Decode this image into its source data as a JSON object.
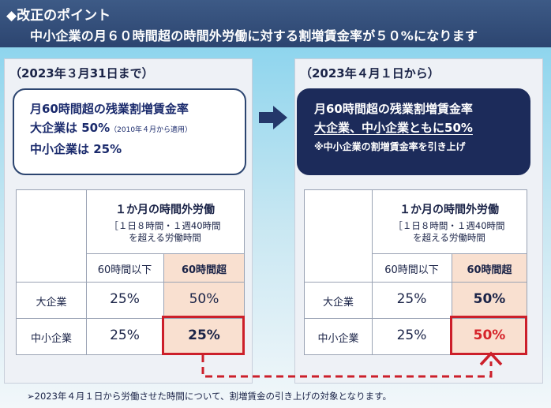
{
  "header": {
    "title": "◆改正のポイント",
    "subtitle": "中小企業の月６０時間超の時間外労働に対する割増賃金率が５０%になります"
  },
  "before": {
    "period": "（2023年３月31日まで）",
    "box": {
      "line1": "月60時間超の残業割増賃金率",
      "line2": "大企業は 50%",
      "line2_note": "（2010年４月から適用）",
      "line3": "中小企業は 25%"
    },
    "table": {
      "header_main": "１か月の時間外労働",
      "header_sub1": "［１日８時間・１週40時間",
      "header_sub2": "を超える労働時間",
      "col1": "60時間以下",
      "col2": "60時間超",
      "row1_label": "大企業",
      "row1_v1": "25%",
      "row1_v2": "50%",
      "row2_label": "中小企業",
      "row2_v1": "25%",
      "row2_v2": "25%"
    }
  },
  "after": {
    "period": "（2023年４月１日から）",
    "box": {
      "line1": "月60時間超の残業割増賃金率",
      "line2": "大企業、中小企業ともに50%",
      "line3": "※中小企業の割増賃金率を引き上げ"
    },
    "table": {
      "header_main": "１か月の時間外労働",
      "header_sub1": "［１日８時間・１週40時間",
      "header_sub2": "を超える労働時間",
      "col1": "60時間以下",
      "col2": "60時間超",
      "row1_label": "大企業",
      "row1_v1": "25%",
      "row1_v2": "50%",
      "row2_label": "中小企業",
      "row2_v1": "25%",
      "row2_v2": "50%"
    }
  },
  "footer": "➢2023年４月１日から労働させた時間について、割増賃金の引き上げの対象となります。",
  "colors": {
    "header_bg": "#2c4570",
    "navy": "#1c2b5a",
    "highlight_red": "#cc1f2a",
    "peach": "#f9e0d0"
  },
  "icons": {
    "transition_arrow": "right-arrow-icon",
    "connector": "dashed-connector-arrow-icon"
  }
}
